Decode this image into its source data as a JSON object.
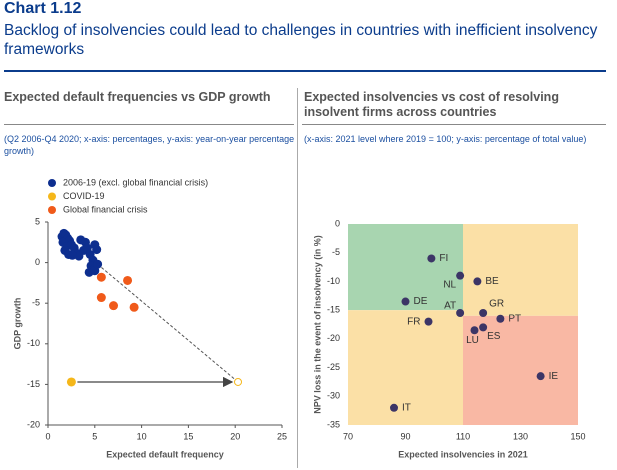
{
  "header": {
    "label": "Chart 1.12",
    "title": "Backlog of insolvencies could lead to challenges in countries with inefficient insolvency frameworks"
  },
  "chart_data": [
    {
      "type": "scatter",
      "title": "Expected default frequencies vs GDP growth",
      "subtitle": "(Q2 2006-Q4 2020; x-axis: percentages, y-axis: year-on-year percentage growth)",
      "x_label": "Expected  default frequency",
      "y_label": "GDP growth",
      "xlim": [
        0,
        25
      ],
      "xticks": [
        0,
        5,
        10,
        15,
        20,
        25
      ],
      "ylim": [
        -20,
        5
      ],
      "yticks": [
        -20,
        -15,
        -10,
        -5,
        0,
        5
      ],
      "series": [
        {
          "name": "2006-19  (excl. global financial crisis)",
          "color": "#0d2e8f",
          "x": [
            1.5,
            1.7,
            1.9,
            2.1,
            1.6,
            2.3,
            2.0,
            2.5,
            1.8,
            2.2,
            2.8,
            3.0,
            3.5,
            4.0,
            3.8,
            4.2,
            5.0,
            5.2,
            4.5,
            3.3,
            2.6,
            4.8,
            4.6,
            4.9,
            4.4,
            5.0,
            5.3
          ],
          "values": [
            3.2,
            3.6,
            3.4,
            3.0,
            2.5,
            2.7,
            2.0,
            2.2,
            1.5,
            1.0,
            1.8,
            1.2,
            2.8,
            2.5,
            1.5,
            1.8,
            2.2,
            1.6,
            1.0,
            0.8,
            0.9,
            0.3,
            -0.4,
            -0.8,
            -1.2,
            -1.0,
            -0.2
          ]
        },
        {
          "name": "COVID-19",
          "color": "#f5b71a",
          "x": [
            2.5,
            20.3
          ],
          "values": [
            -14.7,
            -14.7
          ],
          "hollow": [
            false,
            true
          ]
        },
        {
          "name": "Global financial crisis",
          "color": "#f05a1a",
          "x": [
            5.7,
            5.7,
            7.0,
            8.5,
            9.2
          ],
          "values": [
            -1.8,
            -4.3,
            -5.3,
            -2.2,
            -5.5
          ]
        }
      ]
    },
    {
      "type": "labeled-scatter",
      "title": "Expected insolvencies vs cost of resolving insolvent firms across countries",
      "subtitle": "(x-axis: 2021 level where 2019 = 100; y-axis: percentage of total value)",
      "x_label": "Expected  insolvencies in 2021",
      "y_label": "NPV loss in the event of insolvency (in %)",
      "xlim": [
        70,
        150
      ],
      "xticks": [
        70,
        90,
        110,
        130,
        150
      ],
      "ylim": [
        -35,
        0
      ],
      "yticks": [
        -35,
        -30,
        -25,
        -20,
        -15,
        -10,
        -5,
        0
      ],
      "regions": [
        {
          "xlim": [
            70,
            110
          ],
          "ylim": [
            -15,
            0
          ],
          "color": "#a8d5b0"
        },
        {
          "xlim": [
            110,
            150
          ],
          "ylim": [
            -16,
            0
          ],
          "color": "#fbe0a6"
        },
        {
          "xlim": [
            70,
            110
          ],
          "ylim": [
            -35,
            -15
          ],
          "color": "#fbe0a6"
        },
        {
          "xlim": [
            110,
            150
          ],
          "ylim": [
            -35,
            -16
          ],
          "color": "#f9b8a4"
        }
      ],
      "color": "#3c3566",
      "categories": [
        "FI",
        "NL",
        "BE",
        "DE",
        "AT",
        "GR",
        "FR",
        "PT",
        "LU",
        "ES",
        "IE",
        "IT"
      ],
      "x": [
        99,
        109,
        115,
        90,
        109,
        117,
        98,
        123,
        114,
        117,
        137,
        86
      ],
      "values": [
        -6,
        -9,
        -10,
        -13.5,
        -15.5,
        -15.5,
        -17,
        -16.5,
        -18.5,
        -18,
        -26.5,
        -32
      ]
    }
  ]
}
